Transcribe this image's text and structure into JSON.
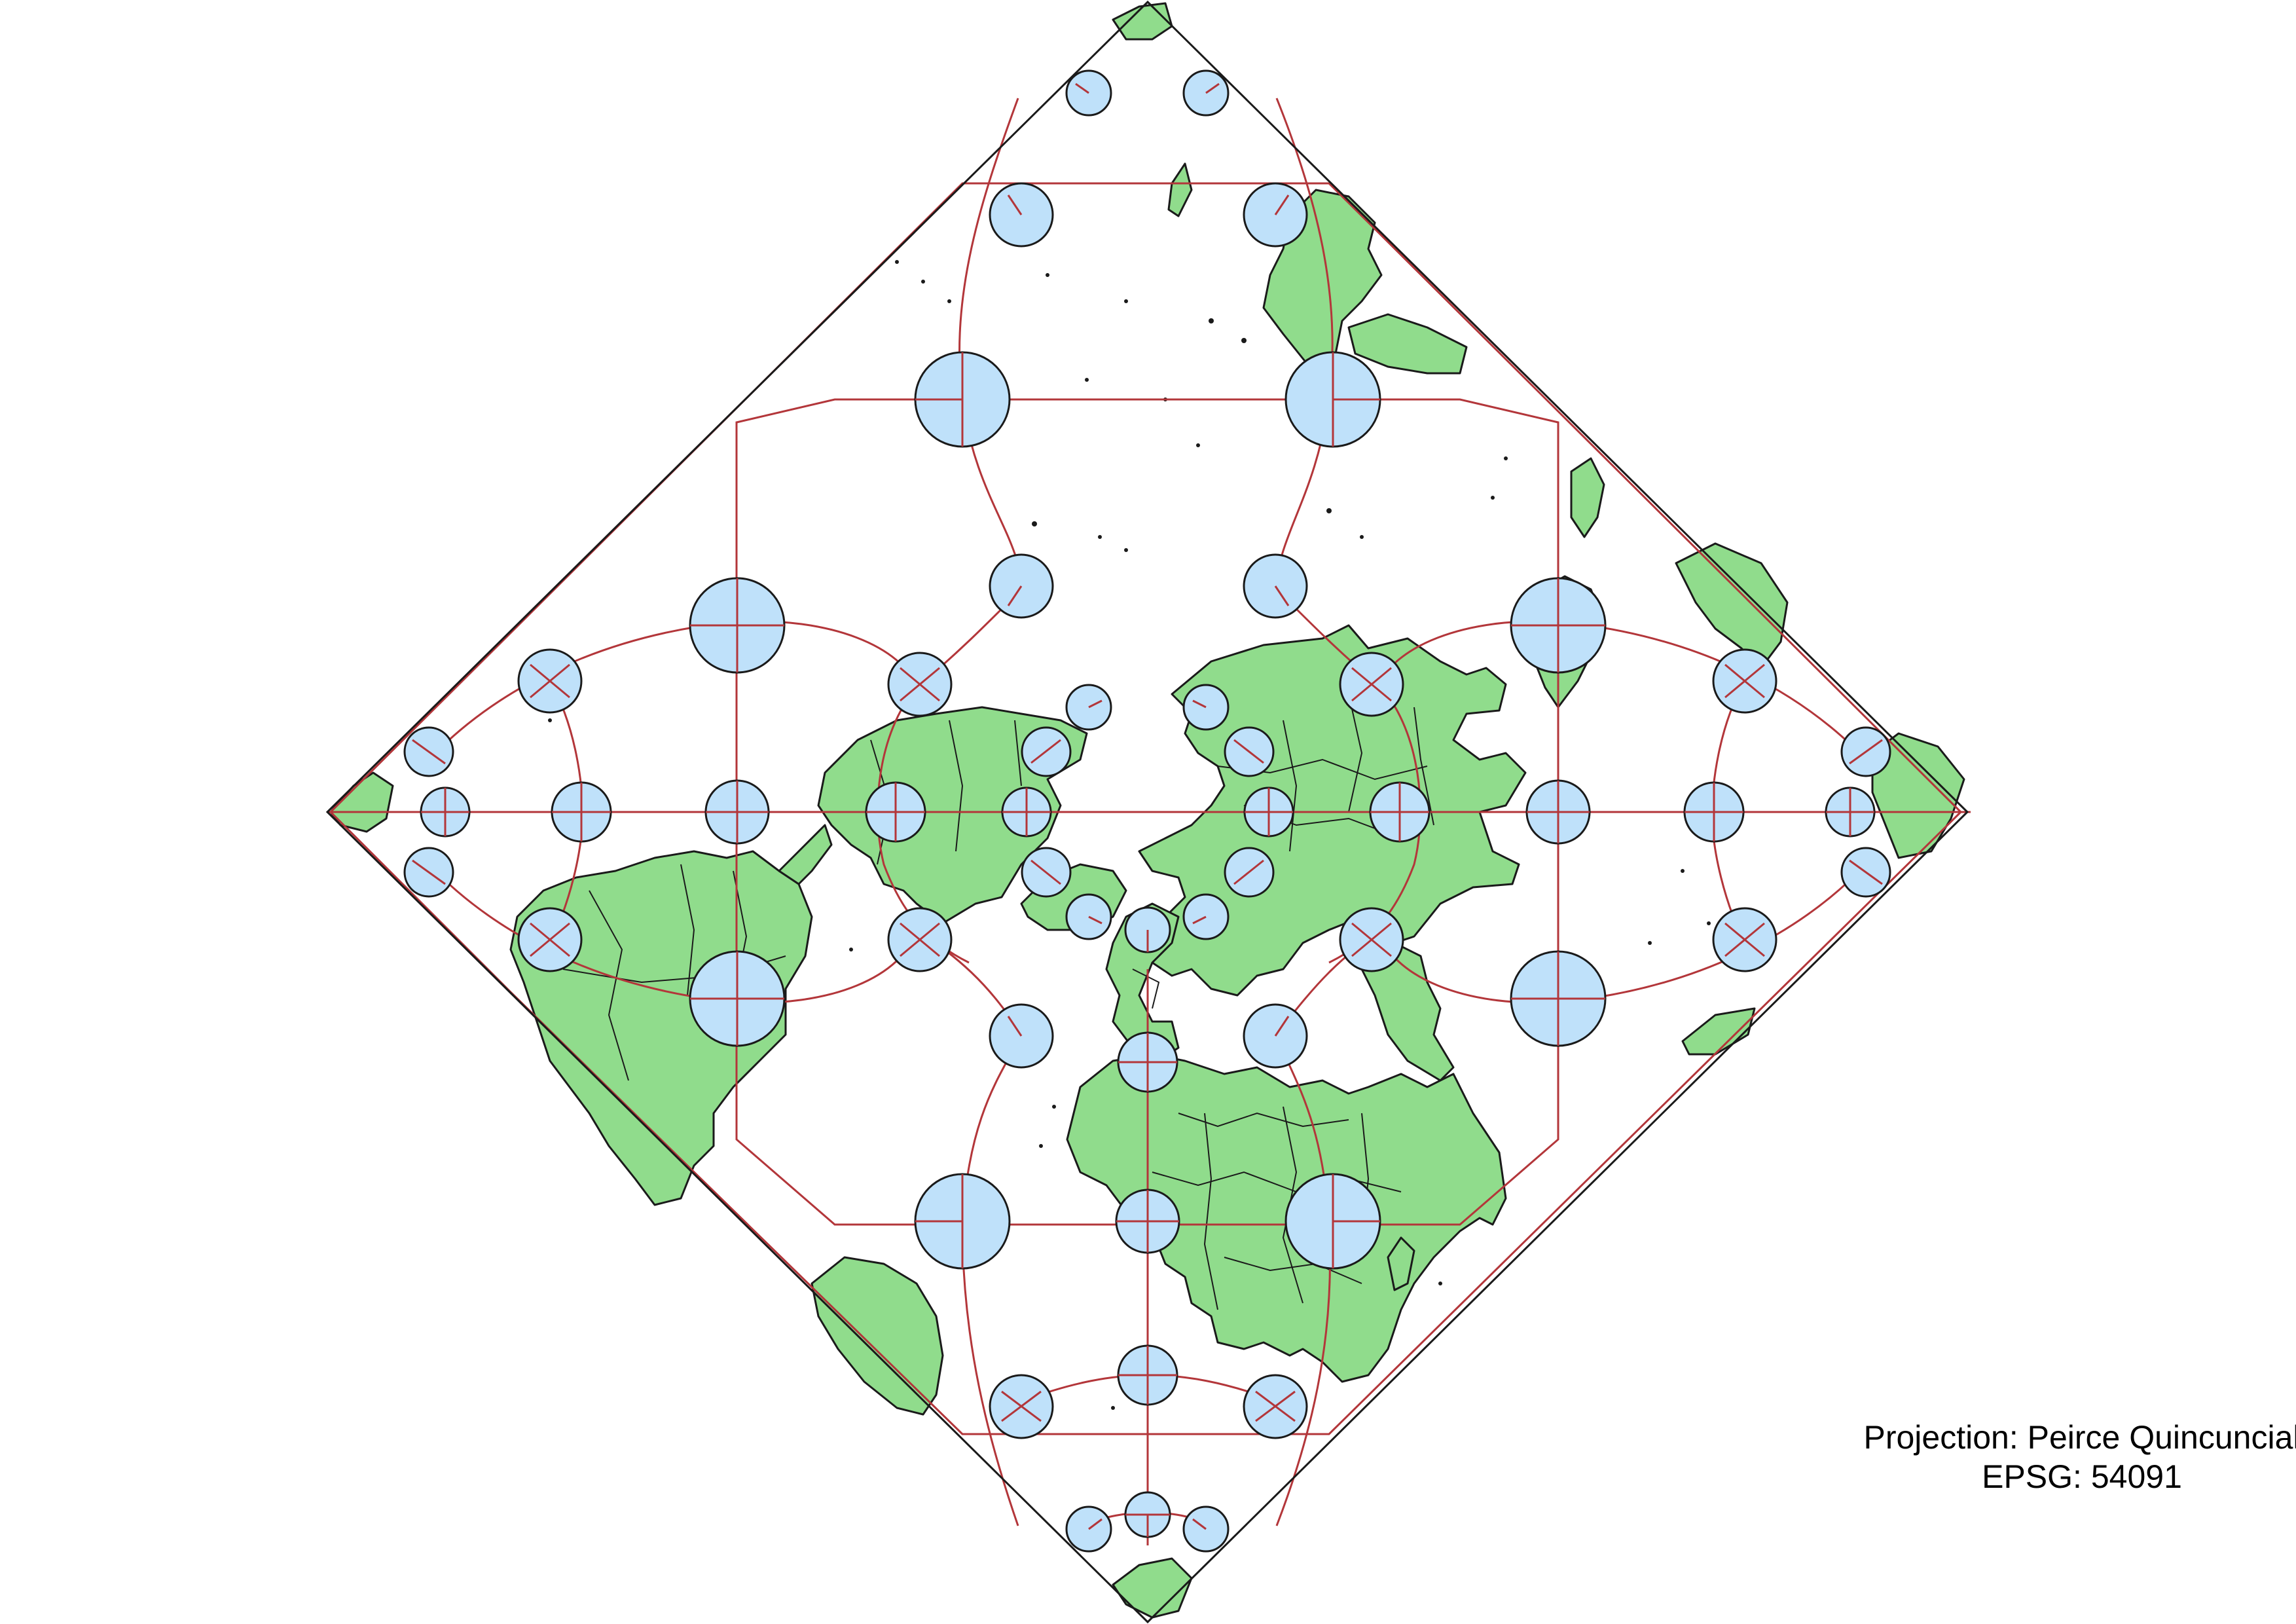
{
  "caption": {
    "projection": "Projection: Peirce Quincuncial",
    "epsg": "EPSG: 54091"
  },
  "colors": {
    "land": "#90dc8c",
    "indicatrix": "#bfe1fa",
    "graticule": "#b3363a",
    "outline": "#1a1a1a"
  }
}
